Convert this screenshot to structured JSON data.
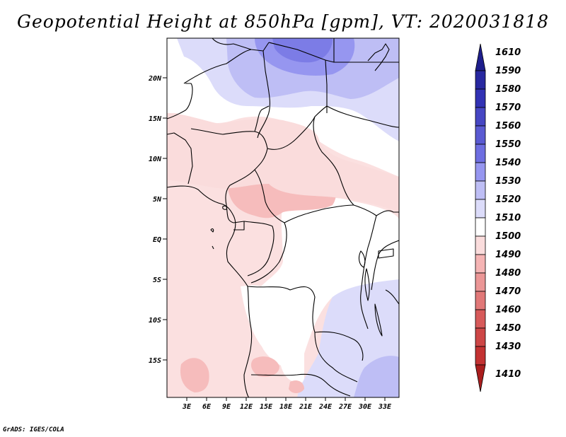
{
  "title": "Geopotential Height at 850hPa [gpm], VT: 2020031818",
  "credit": "GrADS: IGES/COLA",
  "latitude_labels": [
    "20N",
    "15N",
    "10N",
    "5N",
    "EQ",
    "5S",
    "10S",
    "15S"
  ],
  "longitude_labels": [
    "3E",
    "6E",
    "9E",
    "12E",
    "15E",
    "18E",
    "21E",
    "24E",
    "27E",
    "30E",
    "33E"
  ],
  "colorbar": {
    "levels": [
      {
        "label": "1610",
        "color": "#1e1e8c"
      },
      {
        "label": "1590",
        "color": "#2828a0"
      },
      {
        "label": "1580",
        "color": "#3232b4"
      },
      {
        "label": "1570",
        "color": "#4646c3"
      },
      {
        "label": "1560",
        "color": "#5a5ad2"
      },
      {
        "label": "1550",
        "color": "#6e6ee1"
      },
      {
        "label": "1540",
        "color": "#9696f0"
      },
      {
        "label": "1530",
        "color": "#bebef5"
      },
      {
        "label": "1520",
        "color": "#dcdcfa"
      },
      {
        "label": "1510",
        "color": "#ffffff"
      },
      {
        "label": "1500",
        "color": "#fadcdc"
      },
      {
        "label": "1490",
        "color": "#f5b4b4"
      },
      {
        "label": "1480",
        "color": "#eb9696"
      },
      {
        "label": "1470",
        "color": "#e17878"
      },
      {
        "label": "1460",
        "color": "#d75a5a"
      },
      {
        "label": "1450",
        "color": "#cd4646"
      },
      {
        "label": "1430",
        "color": "#c33232"
      },
      {
        "label": "1410",
        "color": "#aa1e1e"
      }
    ]
  }
}
